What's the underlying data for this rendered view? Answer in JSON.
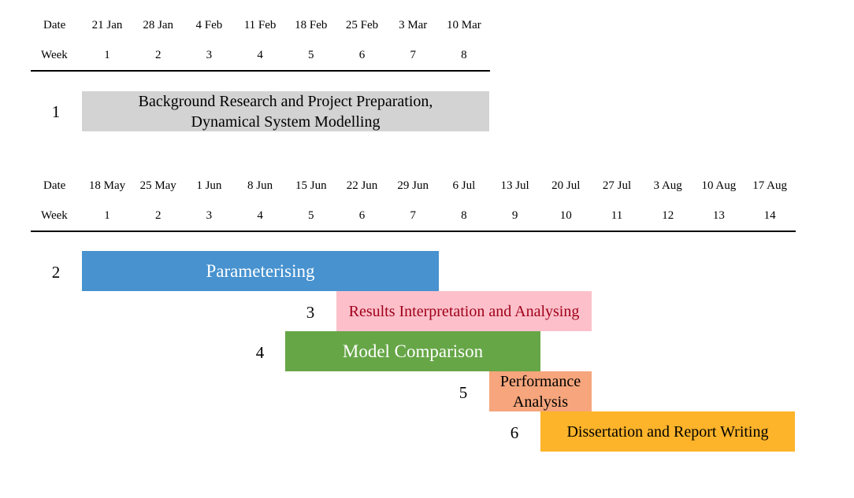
{
  "timeline_1": {
    "date_label": "Date",
    "week_label": "Week",
    "dates": [
      "21 Jan",
      "28 Jan",
      "4 Feb",
      "11 Feb",
      "18 Feb",
      "25 Feb",
      "3 Mar",
      "10 Mar"
    ],
    "weeks": [
      "1",
      "2",
      "3",
      "4",
      "5",
      "6",
      "7",
      "8"
    ]
  },
  "timeline_2": {
    "date_label": "Date",
    "week_label": "Week",
    "dates": [
      "18 May",
      "25 May",
      "1 Jun",
      "8 Jun",
      "15 Jun",
      "22 Jun",
      "29 Jun",
      "6 Jul",
      "13 Jul",
      "20 Jul",
      "27 Jul",
      "3 Aug",
      "10 Aug",
      "17 Aug"
    ],
    "weeks": [
      "1",
      "2",
      "3",
      "4",
      "5",
      "6",
      "7",
      "8",
      "9",
      "10",
      "11",
      "12",
      "13",
      "14"
    ]
  },
  "tasks": [
    {
      "number": "1",
      "label_line1": "Background Research and Project Preparation,",
      "label_line2": "Dynamical System Modelling",
      "color": "#d3d3d3",
      "text_color": "#000000",
      "start_week": 1,
      "end_week": 8
    },
    {
      "number": "2",
      "label_line1": "Parameterising",
      "label_line2": "",
      "color": "#4792cf",
      "text_color": "#ffffff",
      "start_week": 1,
      "end_week": 7
    },
    {
      "number": "3",
      "label_line1": "Results Interpretation and Analysing",
      "label_line2": "",
      "color": "#fdc0cb",
      "text_color": "#a00018",
      "start_week": 6,
      "end_week": 10
    },
    {
      "number": "4",
      "label_line1": "Model Comparison",
      "label_line2": "",
      "color": "#66a647",
      "text_color": "#ffffff",
      "start_week": 5,
      "end_week": 9
    },
    {
      "number": "5",
      "label_line1": "Performance",
      "label_line2": "Analysis",
      "color": "#f6a57c",
      "text_color": "#000000",
      "start_week": 9,
      "end_week": 10
    },
    {
      "number": "6",
      "label_line1": "Dissertation and Report Writing",
      "label_line2": "",
      "color": "#fdb42a",
      "text_color": "#000000",
      "start_week": 10,
      "end_week": 14
    }
  ]
}
